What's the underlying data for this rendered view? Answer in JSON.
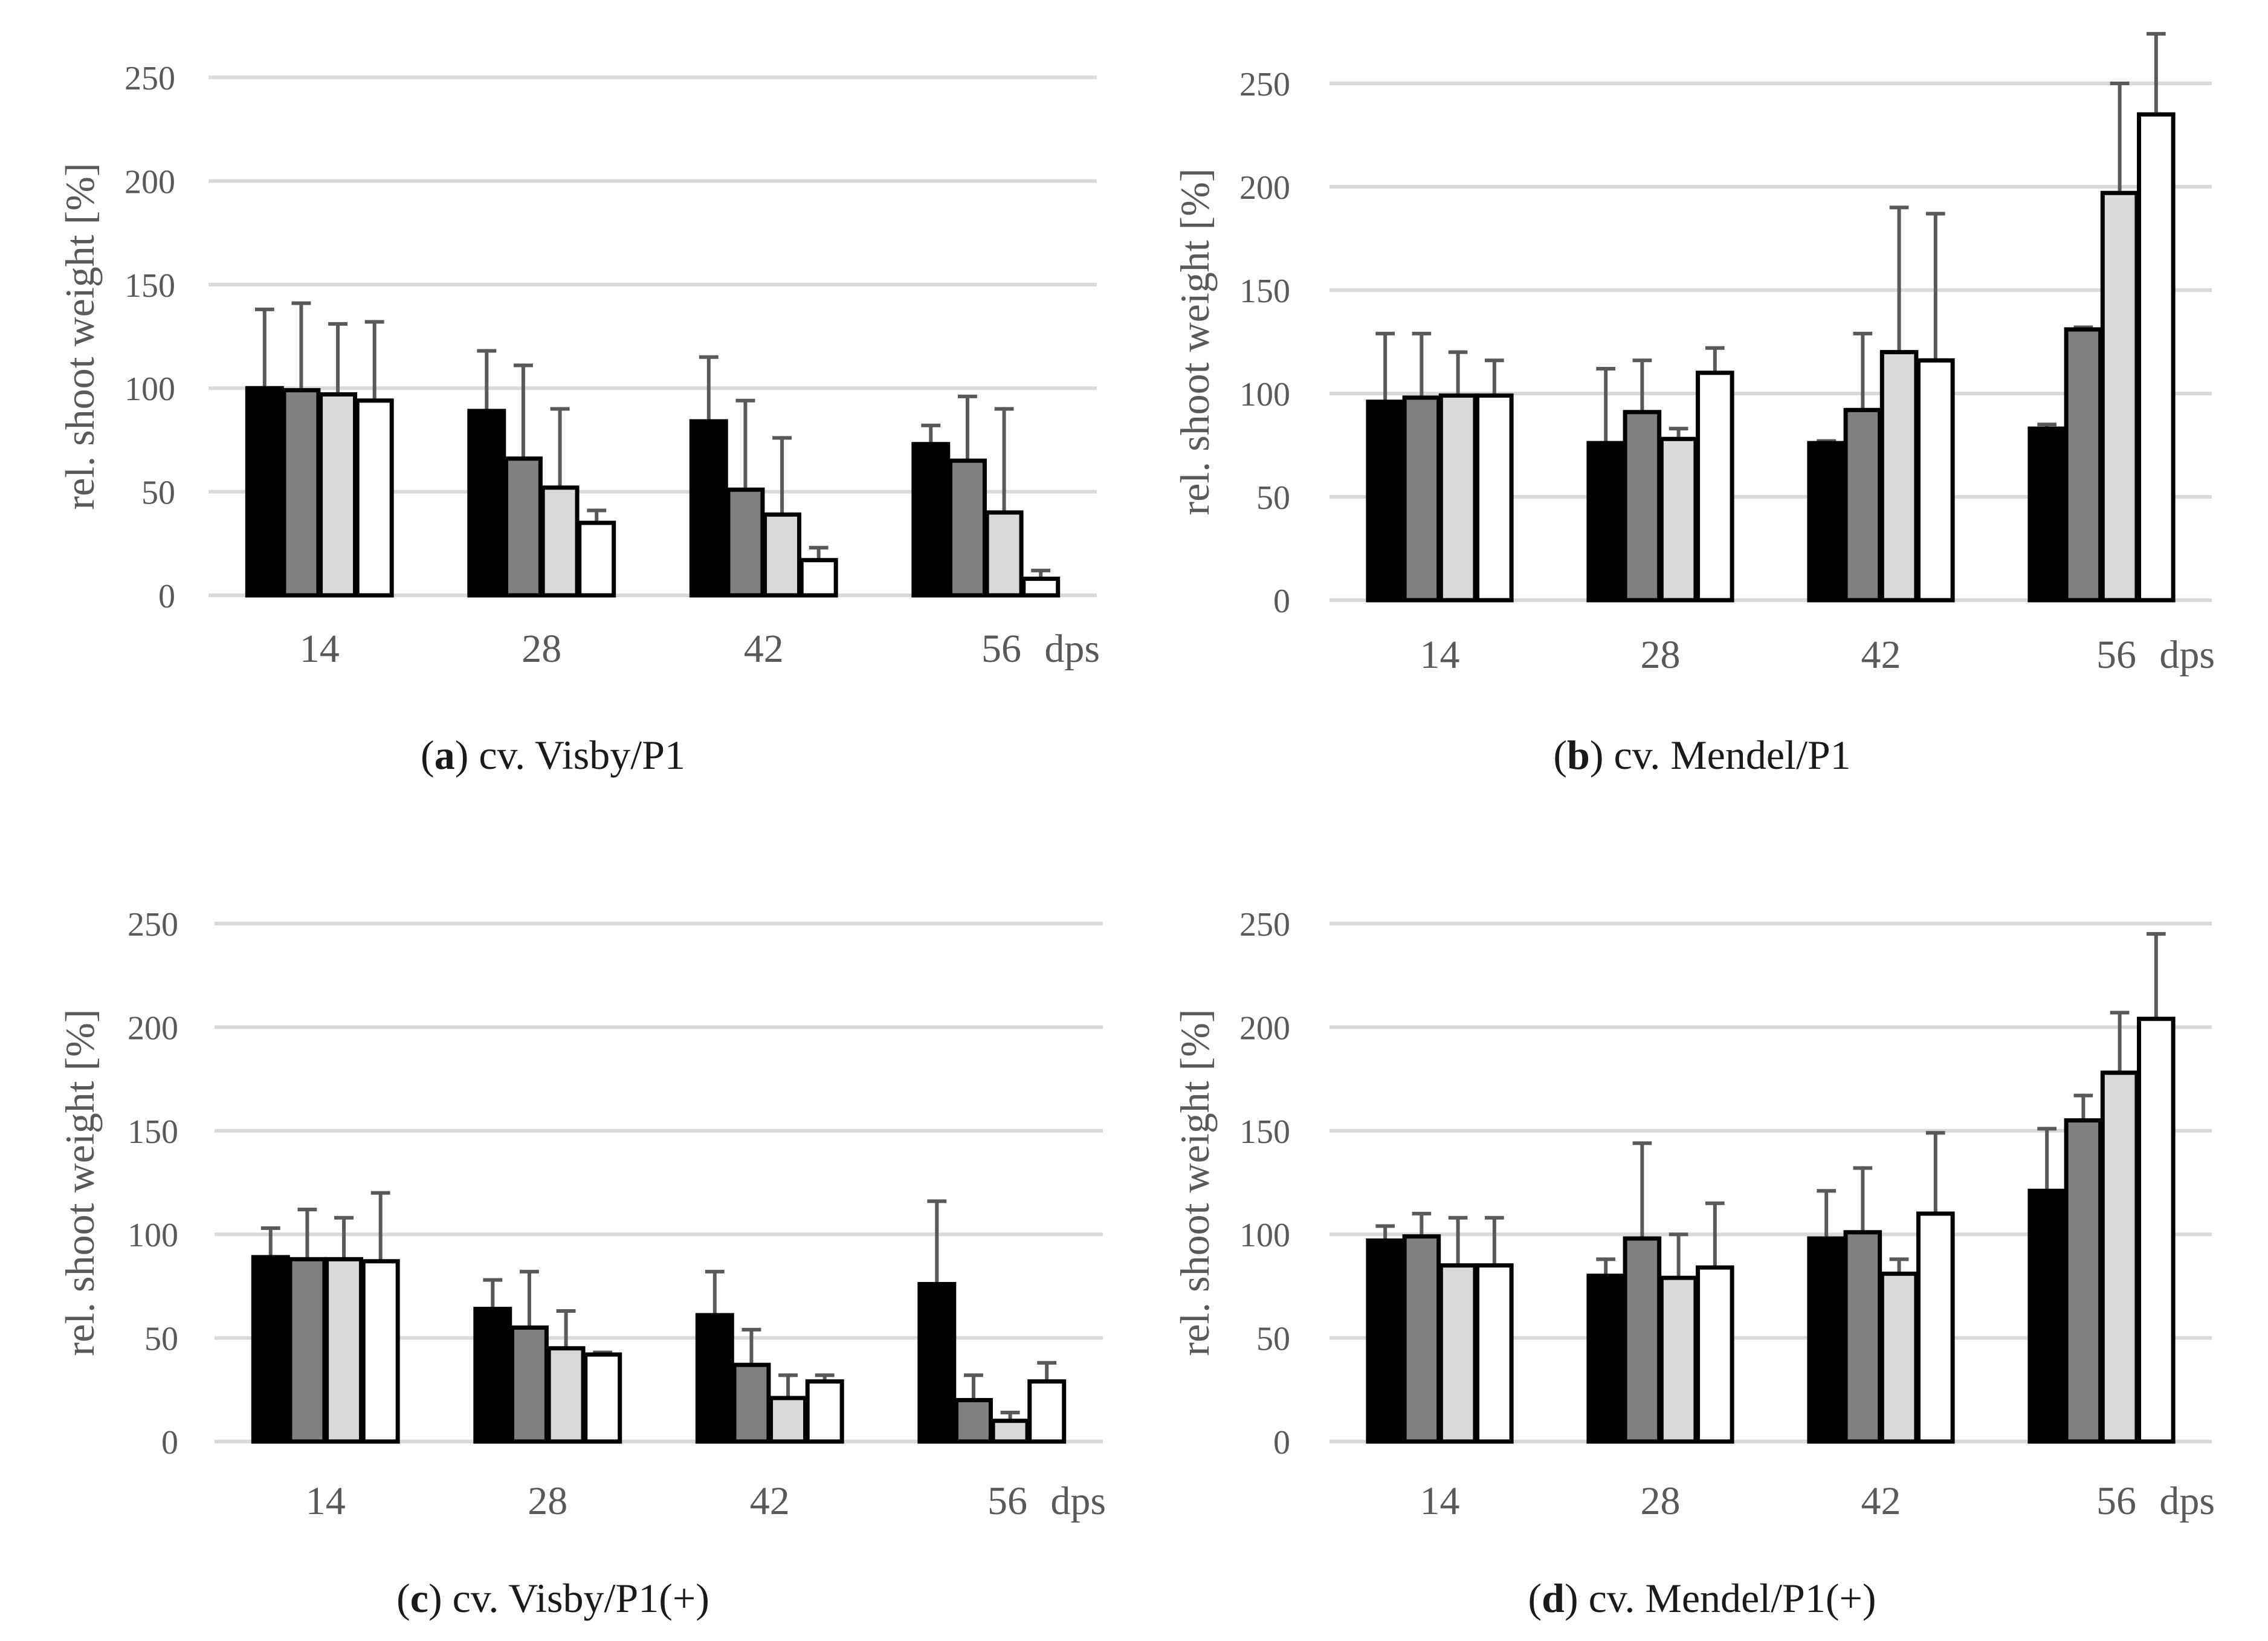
{
  "figure": {
    "series_colors": [
      "#000000",
      "#808080",
      "#d9d9d9",
      "#ffffff"
    ],
    "bar_stroke": "#000000",
    "grid_color": "#d9d9d9",
    "error_bar_color": "#595959",
    "text_color": "#595959"
  },
  "chart_data": [
    {
      "type": "bar",
      "panel": "a",
      "caption_letter": "a",
      "caption_text": ") cv. Visby/P1",
      "caption_open": "(",
      "categories": [
        "14",
        "28",
        "42",
        "56"
      ],
      "x_unit": "dps",
      "ylabel": "rel. shoot weight [%]",
      "ylim": [
        0,
        250
      ],
      "yticks": [
        "0",
        "50",
        "100",
        "150",
        "200",
        "250"
      ],
      "grid": true,
      "series": [
        {
          "values": [
            100,
            89,
            84,
            73
          ],
          "errors": [
            38,
            29,
            31,
            9
          ]
        },
        {
          "values": [
            99,
            66,
            51,
            65
          ],
          "errors": [
            42,
            45,
            43,
            31
          ]
        },
        {
          "values": [
            97,
            52,
            39,
            40
          ],
          "errors": [
            34,
            38,
            37,
            50
          ]
        },
        {
          "values": [
            94,
            35,
            17,
            8
          ],
          "errors": [
            38,
            6,
            6,
            4
          ]
        }
      ]
    },
    {
      "type": "bar",
      "panel": "b",
      "caption_letter": "b",
      "caption_text": ") cv. Mendel/P1",
      "caption_open": "(",
      "categories": [
        "14",
        "28",
        "42",
        "56"
      ],
      "x_unit": "dps",
      "ylabel": "rel. shoot weight [%]",
      "ylim": [
        0,
        250
      ],
      "yticks": [
        "0",
        "50",
        "100",
        "150",
        "200",
        "250"
      ],
      "grid": true,
      "series": [
        {
          "values": [
            96,
            76,
            76,
            83
          ],
          "errors": [
            33,
            36,
            1,
            2
          ]
        },
        {
          "values": [
            98,
            91,
            92,
            131
          ],
          "errors": [
            31,
            25,
            37,
            1
          ]
        },
        {
          "values": [
            99,
            78,
            120,
            197
          ],
          "errors": [
            21,
            5,
            70,
            53
          ]
        },
        {
          "values": [
            99,
            110,
            116,
            235
          ],
          "errors": [
            17,
            12,
            71,
            39
          ]
        }
      ]
    },
    {
      "type": "bar",
      "panel": "c",
      "caption_letter": "c",
      "caption_text": ") cv. Visby/P1(+)",
      "caption_open": "(",
      "categories": [
        "14",
        "28",
        "42",
        "56"
      ],
      "x_unit": "dps",
      "ylabel": "rel. shoot weight [%]",
      "ylim": [
        0,
        250
      ],
      "yticks": [
        "0",
        "50",
        "100",
        "150",
        "200",
        "250"
      ],
      "grid": true,
      "series": [
        {
          "values": [
            89,
            64,
            61,
            76
          ],
          "errors": [
            14,
            14,
            21,
            40
          ]
        },
        {
          "values": [
            88,
            55,
            37,
            20
          ],
          "errors": [
            24,
            27,
            17,
            12
          ]
        },
        {
          "values": [
            88,
            45,
            21,
            10
          ],
          "errors": [
            20,
            18,
            11,
            4
          ]
        },
        {
          "values": [
            87,
            42,
            29,
            29
          ],
          "errors": [
            33,
            1,
            3,
            9
          ]
        }
      ]
    },
    {
      "type": "bar",
      "panel": "d",
      "caption_letter": "d",
      "caption_text": ") cv. Mendel/P1(+)",
      "caption_open": "(",
      "categories": [
        "14",
        "28",
        "42",
        "56"
      ],
      "x_unit": "dps",
      "ylabel": "rel. shoot weight [%]",
      "ylim": [
        0,
        250
      ],
      "yticks": [
        "0",
        "50",
        "100",
        "150",
        "200",
        "250"
      ],
      "grid": true,
      "series": [
        {
          "values": [
            97,
            80,
            98,
            121
          ],
          "errors": [
            7,
            8,
            23,
            30
          ]
        },
        {
          "values": [
            99,
            98,
            101,
            155
          ],
          "errors": [
            11,
            46,
            31,
            12
          ]
        },
        {
          "values": [
            85,
            79,
            81,
            178
          ],
          "errors": [
            23,
            21,
            7,
            29
          ]
        },
        {
          "values": [
            85,
            84,
            110,
            204
          ],
          "errors": [
            23,
            31,
            39,
            41
          ]
        }
      ]
    }
  ]
}
